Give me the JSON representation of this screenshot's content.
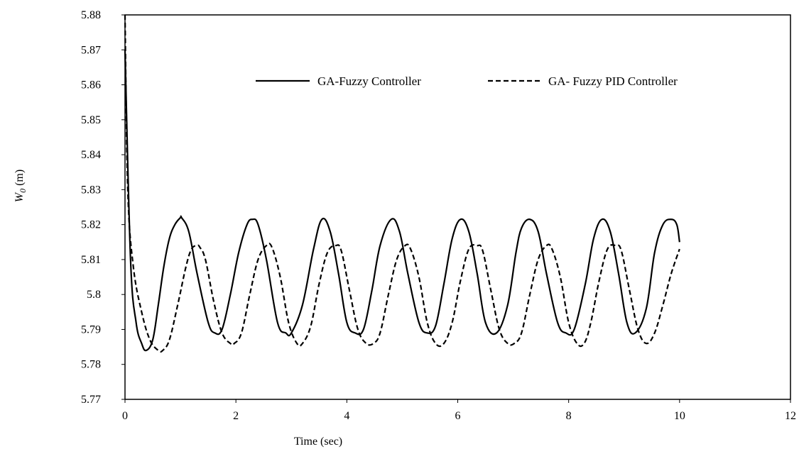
{
  "chart_data": {
    "type": "line",
    "title": "",
    "xlabel": "Time (sec)",
    "ylabel_main": "W",
    "ylabel_sub": "0",
    "ylabel_unit": " (m)",
    "xlim": [
      0,
      12
    ],
    "ylim": [
      5.77,
      5.88
    ],
    "xticks": [
      "0",
      "2",
      "4",
      "6",
      "8",
      "10",
      "12"
    ],
    "yticks": [
      "5.77",
      "5.78",
      "5.79",
      "5.8",
      "5.81",
      "5.82",
      "5.83",
      "5.84",
      "5.85",
      "5.86",
      "5.87",
      "5.88"
    ],
    "grid": false,
    "legend_position": "top",
    "series": [
      {
        "name": "GA-Fuzzy Controller",
        "style": "solid",
        "color": "#000000",
        "x": [
          0,
          0.1,
          0.2,
          0.3,
          0.38,
          0.5,
          0.6,
          0.7,
          0.8,
          0.9,
          1.0,
          1.02,
          1.15,
          1.3,
          1.5,
          1.62,
          1.75,
          1.9,
          2.05,
          2.2,
          2.3,
          2.4,
          2.55,
          2.75,
          2.9,
          3.0,
          3.2,
          3.4,
          3.55,
          3.7,
          3.85,
          4.0,
          4.15,
          4.3,
          4.45,
          4.6,
          4.8,
          4.95,
          5.1,
          5.3,
          5.45,
          5.6,
          5.75,
          5.9,
          6.05,
          6.2,
          6.35,
          6.5,
          6.7,
          6.9,
          7.05,
          7.15,
          7.3,
          7.45,
          7.6,
          7.8,
          7.95,
          8.1,
          8.3,
          8.45,
          8.6,
          8.75,
          8.9,
          9.05,
          9.2,
          9.4,
          9.55,
          9.7,
          9.85,
          9.95,
          10.0
        ],
        "y": [
          5.87,
          5.81,
          5.792,
          5.786,
          5.784,
          5.787,
          5.797,
          5.808,
          5.816,
          5.82,
          5.822,
          5.822,
          5.818,
          5.806,
          5.792,
          5.789,
          5.79,
          5.8,
          5.812,
          5.82,
          5.8215,
          5.82,
          5.81,
          5.792,
          5.789,
          5.789,
          5.797,
          5.813,
          5.8215,
          5.818,
          5.806,
          5.792,
          5.789,
          5.79,
          5.801,
          5.814,
          5.8215,
          5.818,
          5.806,
          5.792,
          5.789,
          5.791,
          5.803,
          5.816,
          5.8215,
          5.818,
          5.806,
          5.792,
          5.789,
          5.797,
          5.812,
          5.819,
          5.8215,
          5.818,
          5.806,
          5.792,
          5.789,
          5.79,
          5.803,
          5.816,
          5.8215,
          5.818,
          5.806,
          5.792,
          5.789,
          5.796,
          5.812,
          5.82,
          5.8215,
          5.82,
          5.815
        ]
      },
      {
        "name": "GA- Fuzzy PID Controller",
        "style": "dashed",
        "color": "#000000",
        "x": [
          0,
          0.05,
          0.15,
          0.3,
          0.45,
          0.6,
          0.68,
          0.8,
          0.95,
          1.1,
          1.2,
          1.3,
          1.35,
          1.45,
          1.6,
          1.75,
          1.9,
          1.97,
          2.1,
          2.25,
          2.4,
          2.55,
          2.65,
          2.8,
          2.95,
          3.1,
          3.2,
          3.35,
          3.5,
          3.65,
          3.8,
          3.9,
          4.05,
          4.2,
          4.35,
          4.48,
          4.6,
          4.75,
          4.9,
          5.05,
          5.15,
          5.3,
          5.45,
          5.6,
          5.75,
          5.9,
          6.05,
          6.2,
          6.35,
          6.45,
          6.6,
          6.75,
          6.9,
          7.02,
          7.15,
          7.3,
          7.45,
          7.6,
          7.7,
          7.85,
          8.0,
          8.15,
          8.28,
          8.4,
          8.55,
          8.7,
          8.85,
          8.95,
          9.1,
          9.25,
          9.4,
          9.55,
          9.7,
          9.85,
          10.0
        ],
        "y": [
          5.88,
          5.83,
          5.808,
          5.795,
          5.787,
          5.784,
          5.784,
          5.787,
          5.797,
          5.808,
          5.813,
          5.814,
          5.8135,
          5.81,
          5.798,
          5.789,
          5.786,
          5.786,
          5.789,
          5.8,
          5.81,
          5.814,
          5.8135,
          5.805,
          5.792,
          5.786,
          5.786,
          5.791,
          5.803,
          5.812,
          5.814,
          5.8125,
          5.801,
          5.79,
          5.786,
          5.786,
          5.789,
          5.8,
          5.81,
          5.814,
          5.813,
          5.805,
          5.792,
          5.786,
          5.786,
          5.792,
          5.804,
          5.813,
          5.814,
          5.8125,
          5.801,
          5.79,
          5.786,
          5.786,
          5.789,
          5.8,
          5.81,
          5.814,
          5.813,
          5.805,
          5.792,
          5.786,
          5.786,
          5.792,
          5.804,
          5.813,
          5.814,
          5.8125,
          5.801,
          5.79,
          5.786,
          5.789,
          5.797,
          5.806,
          5.813
        ]
      }
    ]
  }
}
